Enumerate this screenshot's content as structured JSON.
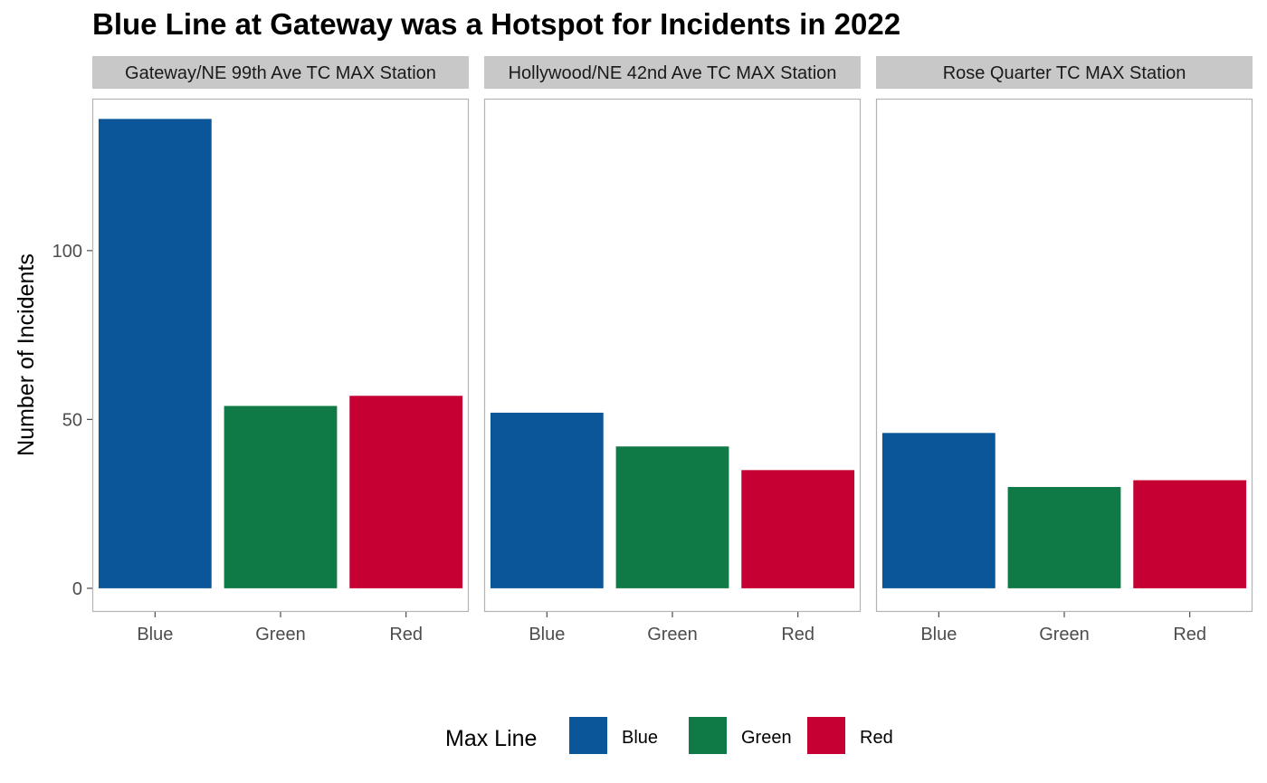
{
  "title": "Blue Line at Gateway was a Hotspot for Incidents in 2022",
  "colors": {
    "Blue": "#0a5699",
    "Green": "#0f7a45",
    "Red": "#c60033",
    "strip": "#c8c8c8",
    "frame": "#b3b3b3"
  },
  "legend": {
    "title": "Max Line",
    "items": [
      "Blue",
      "Green",
      "Red"
    ]
  },
  "chart_data": {
    "type": "bar",
    "title": "Blue Line at Gateway was a Hotspot for Incidents in 2022",
    "xlabel": "",
    "ylabel": "Number of Incidents",
    "ylim": [
      -7,
      145
    ],
    "yticks": [
      0,
      50,
      100
    ],
    "grid": false,
    "legend_position": "bottom",
    "categories": [
      "Blue",
      "Green",
      "Red"
    ],
    "facets": [
      {
        "name": "Gateway/NE 99th Ave TC MAX Station",
        "values": [
          139,
          54,
          57
        ]
      },
      {
        "name": "Hollywood/NE 42nd Ave TC MAX Station",
        "values": [
          52,
          42,
          35
        ]
      },
      {
        "name": "Rose Quarter TC MAX Station",
        "values": [
          46,
          30,
          32
        ]
      }
    ]
  }
}
